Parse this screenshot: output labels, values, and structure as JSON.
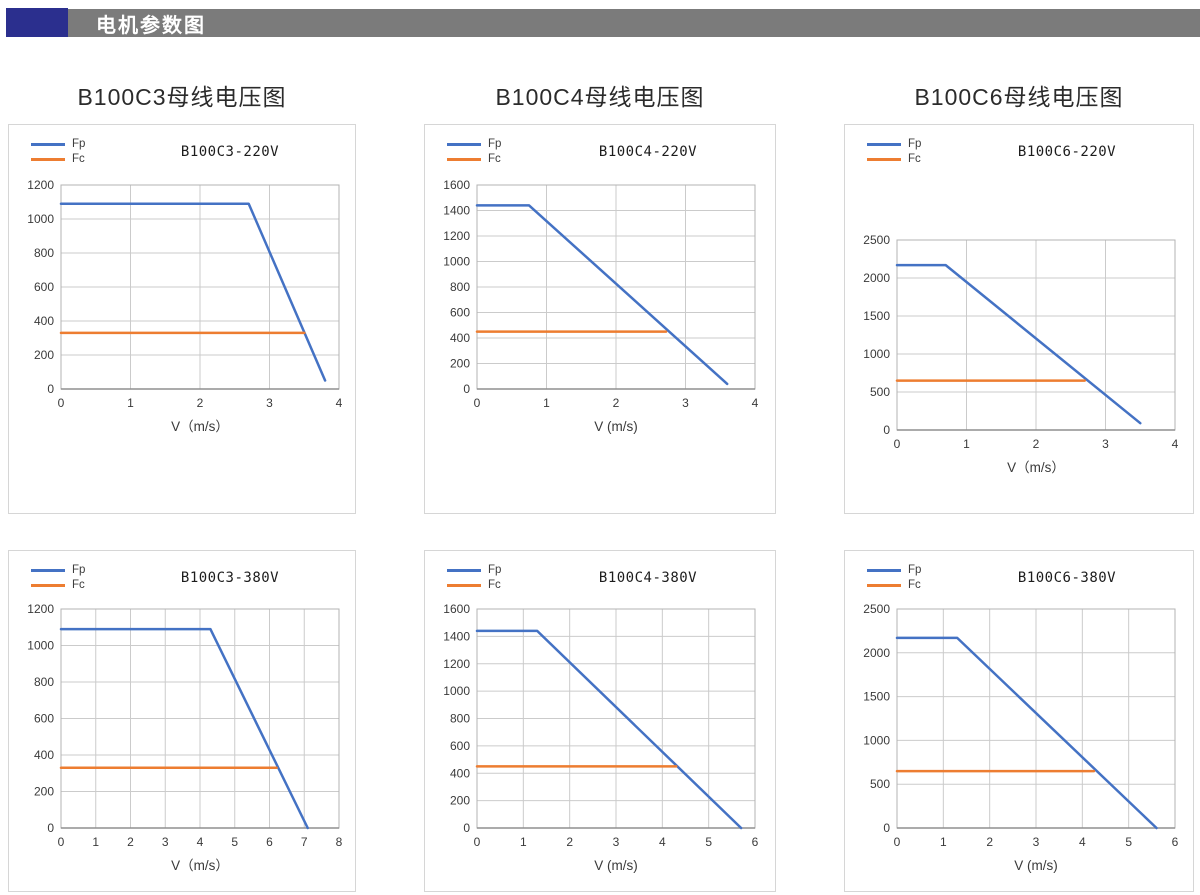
{
  "header": {
    "title": "电机参数图"
  },
  "colors": {
    "accent_navy": "#2b2f8e",
    "header_gray": "#7b7b7b",
    "fp_blue": "#4472c4",
    "fc_orange": "#ed7d31",
    "gridline": "#cbcbcb",
    "plot_border": "#b3b3b3",
    "axis_line": "#8f8f8f"
  },
  "chart_data": [
    {
      "type": "line",
      "section_title": "B100C3母线电压图",
      "title": "B100C3-220V",
      "xlabel": "V（m/s）",
      "xlim": [
        0,
        4
      ],
      "xticks": [
        0,
        1,
        2,
        3,
        4
      ],
      "ylim": [
        0,
        1200
      ],
      "yticks": [
        0,
        200,
        400,
        600,
        800,
        1000,
        1200
      ],
      "grid": true,
      "legend_position": "top-left",
      "series": [
        {
          "name": "Fp",
          "color": "#4472c4",
          "points": [
            [
              0,
              1090
            ],
            [
              2.7,
              1090
            ],
            [
              3.8,
              50
            ]
          ]
        },
        {
          "name": "Fc",
          "color": "#ed7d31",
          "points": [
            [
              0,
              330
            ],
            [
              3.5,
              330
            ]
          ]
        }
      ]
    },
    {
      "type": "line",
      "section_title": "B100C4母线电压图",
      "title": "B100C4-220V",
      "xlabel": "V (m/s)",
      "xlim": [
        0,
        4
      ],
      "xticks": [
        0,
        1,
        2,
        3,
        4
      ],
      "ylim": [
        0,
        1600
      ],
      "yticks": [
        0,
        200,
        400,
        600,
        800,
        1000,
        1200,
        1400,
        1600
      ],
      "grid": true,
      "legend_position": "top-left",
      "series": [
        {
          "name": "Fp",
          "color": "#4472c4",
          "points": [
            [
              0,
              1440
            ],
            [
              0.75,
              1440
            ],
            [
              3.6,
              40
            ]
          ]
        },
        {
          "name": "Fc",
          "color": "#ed7d31",
          "points": [
            [
              0,
              450
            ],
            [
              2.72,
              450
            ]
          ]
        }
      ]
    },
    {
      "type": "line",
      "section_title": "B100C6母线电压图",
      "title": "B100C6-220V",
      "xlabel": "V（m/s）",
      "xlim": [
        0,
        4
      ],
      "xticks": [
        0,
        1,
        2,
        3,
        4
      ],
      "ylim": [
        0,
        2500
      ],
      "yticks": [
        0,
        500,
        1000,
        1500,
        2000,
        2500
      ],
      "grid": true,
      "legend_position": "top-left",
      "series": [
        {
          "name": "Fp",
          "color": "#4472c4",
          "points": [
            [
              0,
              2170
            ],
            [
              0.7,
              2170
            ],
            [
              3.5,
              90
            ]
          ]
        },
        {
          "name": "Fc",
          "color": "#ed7d31",
          "points": [
            [
              0,
              650
            ],
            [
              2.7,
              650
            ]
          ]
        }
      ]
    },
    {
      "type": "line",
      "title": "B100C3-380V",
      "xlabel": "V（m/s）",
      "xlim": [
        0,
        8
      ],
      "xticks": [
        0,
        1,
        2,
        3,
        4,
        5,
        6,
        7,
        8
      ],
      "ylim": [
        0,
        1200
      ],
      "yticks": [
        0,
        200,
        400,
        600,
        800,
        1000,
        1200
      ],
      "grid": true,
      "legend_position": "top-left",
      "series": [
        {
          "name": "Fp",
          "color": "#4472c4",
          "points": [
            [
              0,
              1090
            ],
            [
              4.3,
              1090
            ],
            [
              7.1,
              0
            ]
          ]
        },
        {
          "name": "Fc",
          "color": "#ed7d31",
          "points": [
            [
              0,
              330
            ],
            [
              6.2,
              330
            ]
          ]
        }
      ]
    },
    {
      "type": "line",
      "title": "B100C4-380V",
      "xlabel": "V (m/s)",
      "xlim": [
        0,
        6
      ],
      "xticks": [
        0,
        1,
        2,
        3,
        4,
        5,
        6
      ],
      "ylim": [
        0,
        1600
      ],
      "yticks": [
        0,
        200,
        400,
        600,
        800,
        1000,
        1200,
        1400,
        1600
      ],
      "grid": true,
      "legend_position": "top-left",
      "series": [
        {
          "name": "Fp",
          "color": "#4472c4",
          "points": [
            [
              0,
              1440
            ],
            [
              1.3,
              1440
            ],
            [
              5.7,
              0
            ]
          ]
        },
        {
          "name": "Fc",
          "color": "#ed7d31",
          "points": [
            [
              0,
              450
            ],
            [
              4.3,
              450
            ]
          ]
        }
      ]
    },
    {
      "type": "line",
      "title": "B100C6-380V",
      "xlabel": "V (m/s)",
      "xlim": [
        0,
        6
      ],
      "xticks": [
        0,
        1,
        2,
        3,
        4,
        5,
        6
      ],
      "ylim": [
        0,
        2500
      ],
      "yticks": [
        0,
        500,
        1000,
        1500,
        2000,
        2500
      ],
      "grid": true,
      "legend_position": "top-left",
      "series": [
        {
          "name": "Fp",
          "color": "#4472c4",
          "points": [
            [
              0,
              2170
            ],
            [
              1.3,
              2170
            ],
            [
              5.6,
              0
            ]
          ]
        },
        {
          "name": "Fc",
          "color": "#ed7d31",
          "points": [
            [
              0,
              650
            ],
            [
              4.25,
              650
            ]
          ]
        }
      ]
    }
  ]
}
